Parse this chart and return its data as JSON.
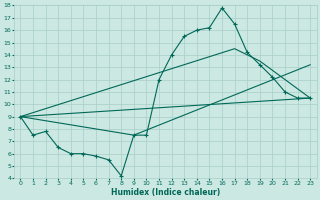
{
  "xlabel": "Humidex (Indice chaleur)",
  "xlim": [
    -0.5,
    23.5
  ],
  "ylim": [
    4,
    18
  ],
  "xticks": [
    0,
    1,
    2,
    3,
    4,
    5,
    6,
    7,
    8,
    9,
    10,
    11,
    12,
    13,
    14,
    15,
    16,
    17,
    18,
    19,
    20,
    21,
    22,
    23
  ],
  "yticks": [
    4,
    5,
    6,
    7,
    8,
    9,
    10,
    11,
    12,
    13,
    14,
    15,
    16,
    17,
    18
  ],
  "background_color": "#cce8e2",
  "grid_color": "#a8cfc8",
  "line_color": "#006858",
  "line1_x": [
    0,
    1,
    2,
    3,
    4,
    5,
    6,
    7,
    8,
    9,
    10,
    11,
    12,
    13,
    14,
    15,
    16,
    17,
    18,
    19,
    20,
    21,
    22,
    23
  ],
  "line1_y": [
    9.0,
    7.5,
    7.8,
    6.5,
    6.0,
    6.0,
    5.8,
    5.5,
    4.2,
    7.5,
    7.5,
    12.0,
    14.0,
    15.5,
    16.0,
    16.2,
    17.8,
    16.5,
    14.2,
    13.2,
    12.2,
    11.0,
    10.5,
    10.5
  ],
  "line2_x": [
    0,
    23
  ],
  "line2_y": [
    9.0,
    10.5
  ],
  "line3_x": [
    0,
    9,
    23
  ],
  "line3_y": [
    9.0,
    7.5,
    13.2
  ],
  "line4_x": [
    0,
    17,
    19,
    23
  ],
  "line4_y": [
    9.0,
    14.5,
    13.5,
    10.5
  ],
  "marker": "+"
}
